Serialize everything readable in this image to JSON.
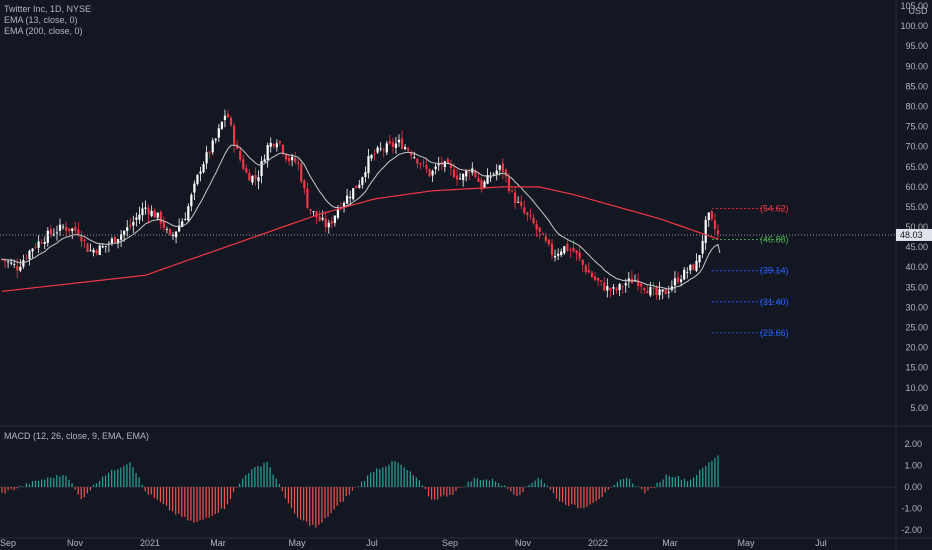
{
  "legend": {
    "symbol": "Twitter Inc, 1D, NYSE",
    "ema13": "EMA (13, close, 0)",
    "ema200": "EMA (200, close, 0)",
    "macd": "MACD (12, 26, close, 9, EMA, EMA)"
  },
  "currency": "USD",
  "colors": {
    "up": "#ffffff",
    "down": "#f23645",
    "ema13": "#c8c8c8",
    "ema200": "#f23645",
    "hist_up": "#26a69a",
    "hist_down": "#ef5350",
    "bg": "#131722",
    "grid": "#2a2e39"
  },
  "chart_data": [
    {
      "type": "candlestick",
      "title": "Twitter Inc, 1D, NYSE",
      "ylim": [
        0,
        105
      ],
      "y_ticks": [
        "105.00",
        "100.00",
        "95.00",
        "90.00",
        "85.00",
        "80.00",
        "75.00",
        "70.00",
        "65.00",
        "60.00",
        "55.00",
        "50.00",
        "45.00",
        "40.00",
        "35.00",
        "30.00",
        "25.00",
        "20.00",
        "15.00",
        "10.00",
        "5.00"
      ],
      "x_ticks": [
        "Sep",
        "Nov",
        "2021",
        "Mar",
        "May",
        "Jul",
        "Sep",
        "Nov",
        "2022",
        "Mar",
        "May",
        "Jul"
      ],
      "last_price": "48.03",
      "price_keypoints": [
        {
          "t": 0,
          "v": 42
        },
        {
          "t": 0.03,
          "v": 40
        },
        {
          "t": 0.06,
          "v": 45
        },
        {
          "t": 0.09,
          "v": 48
        },
        {
          "t": 0.12,
          "v": 50
        },
        {
          "t": 0.15,
          "v": 49
        },
        {
          "t": 0.17,
          "v": 44
        },
        {
          "t": 0.2,
          "v": 45
        },
        {
          "t": 0.22,
          "v": 47
        },
        {
          "t": 0.25,
          "v": 50
        },
        {
          "t": 0.28,
          "v": 55
        },
        {
          "t": 0.31,
          "v": 52
        },
        {
          "t": 0.33,
          "v": 47
        },
        {
          "t": 0.36,
          "v": 53
        },
        {
          "t": 0.39,
          "v": 65
        },
        {
          "t": 0.42,
          "v": 72
        },
        {
          "t": 0.44,
          "v": 79
        },
        {
          "t": 0.46,
          "v": 69
        },
        {
          "t": 0.48,
          "v": 63
        },
        {
          "t": 0.5,
          "v": 62
        },
        {
          "t": 0.52,
          "v": 70
        },
        {
          "t": 0.54,
          "v": 72
        },
        {
          "t": 0.56,
          "v": 67
        },
        {
          "t": 0.58,
          "v": 66
        },
        {
          "t": 0.6,
          "v": 55
        },
        {
          "t": 0.62,
          "v": 52
        },
        {
          "t": 0.64,
          "v": 50
        },
        {
          "t": 0.66,
          "v": 55
        },
        {
          "t": 0.68,
          "v": 58
        },
        {
          "t": 0.7,
          "v": 61
        },
        {
          "t": 0.72,
          "v": 67
        },
        {
          "t": 0.74,
          "v": 69
        },
        {
          "t": 0.76,
          "v": 70
        },
        {
          "t": 0.78,
          "v": 71
        },
        {
          "t": 0.8,
          "v": 69
        },
        {
          "t": 0.82,
          "v": 66
        },
        {
          "t": 0.84,
          "v": 63
        },
        {
          "t": 0.86,
          "v": 66
        },
        {
          "t": 0.88,
          "v": 64
        },
        {
          "t": 0.9,
          "v": 62
        },
        {
          "t": 0.92,
          "v": 65
        },
        {
          "t": 0.94,
          "v": 60
        },
        {
          "t": 0.96,
          "v": 63
        },
        {
          "t": 0.98,
          "v": 65
        },
        {
          "t": 1.0,
          "v": 58
        }
      ],
      "price_keypoints_2": [
        {
          "t": 0,
          "v": 58
        },
        {
          "t": 0.05,
          "v": 54
        },
        {
          "t": 0.1,
          "v": 51
        },
        {
          "t": 0.15,
          "v": 47
        },
        {
          "t": 0.2,
          "v": 43
        },
        {
          "t": 0.25,
          "v": 45
        },
        {
          "t": 0.3,
          "v": 44
        },
        {
          "t": 0.35,
          "v": 40
        },
        {
          "t": 0.4,
          "v": 37
        },
        {
          "t": 0.45,
          "v": 35
        },
        {
          "t": 0.5,
          "v": 34
        },
        {
          "t": 0.55,
          "v": 36
        },
        {
          "t": 0.6,
          "v": 37
        },
        {
          "t": 0.65,
          "v": 35
        },
        {
          "t": 0.7,
          "v": 33
        },
        {
          "t": 0.75,
          "v": 34
        },
        {
          "t": 0.8,
          "v": 37
        },
        {
          "t": 0.85,
          "v": 39
        },
        {
          "t": 0.9,
          "v": 41
        },
        {
          "t": 0.95,
          "v": 53
        },
        {
          "t": 1.0,
          "v": 48
        }
      ],
      "ema200_keypoints": [
        {
          "t": 0,
          "v": 34
        },
        {
          "t": 0.1,
          "v": 36
        },
        {
          "t": 0.2,
          "v": 38
        },
        {
          "t": 0.28,
          "v": 43
        },
        {
          "t": 0.36,
          "v": 48
        },
        {
          "t": 0.44,
          "v": 53
        },
        {
          "t": 0.52,
          "v": 57
        },
        {
          "t": 0.6,
          "v": 59
        },
        {
          "t": 0.7,
          "v": 60
        },
        {
          "t": 0.75,
          "v": 60
        },
        {
          "t": 0.8,
          "v": 58
        },
        {
          "t": 0.86,
          "v": 55
        },
        {
          "t": 0.92,
          "v": 52
        },
        {
          "t": 1.0,
          "v": 47
        }
      ],
      "fib_levels": [
        {
          "label": "(54.62)",
          "value": 54.62,
          "color": "#f23645"
        },
        {
          "label": "(46.88)",
          "value": 46.88,
          "color": "#4caf50"
        },
        {
          "label": "(39.14)",
          "value": 39.14,
          "color": "#2962ff"
        },
        {
          "label": "(31.40)",
          "value": 31.4,
          "color": "#2962ff"
        },
        {
          "label": "(23.66)",
          "value": 23.66,
          "color": "#2962ff"
        }
      ]
    },
    {
      "type": "bar",
      "title": "MACD (12, 26, close, 9, EMA, EMA)",
      "ylim": [
        -2.2,
        2.5
      ],
      "y_ticks": [
        "2.00",
        "1.00",
        "0.00",
        "-1.00",
        "-2.00"
      ],
      "hist_keypoints": [
        {
          "t": 0,
          "v": -0.3
        },
        {
          "t": 0.05,
          "v": 0.3
        },
        {
          "t": 0.09,
          "v": 0.6
        },
        {
          "t": 0.11,
          "v": -0.6
        },
        {
          "t": 0.14,
          "v": 0.5
        },
        {
          "t": 0.18,
          "v": 1.2
        },
        {
          "t": 0.2,
          "v": -0.2
        },
        {
          "t": 0.24,
          "v": -1.2
        },
        {
          "t": 0.27,
          "v": -1.7
        },
        {
          "t": 0.31,
          "v": -1.0
        },
        {
          "t": 0.34,
          "v": 0.6
        },
        {
          "t": 0.37,
          "v": 1.2
        },
        {
          "t": 0.41,
          "v": -1.4
        },
        {
          "t": 0.44,
          "v": -1.9
        },
        {
          "t": 0.48,
          "v": -0.5
        },
        {
          "t": 0.52,
          "v": 0.8
        },
        {
          "t": 0.55,
          "v": 1.2
        },
        {
          "t": 0.58,
          "v": 0.4
        },
        {
          "t": 0.6,
          "v": -0.6
        },
        {
          "t": 0.63,
          "v": -0.3
        },
        {
          "t": 0.66,
          "v": 0.4
        },
        {
          "t": 0.69,
          "v": 0.3
        },
        {
          "t": 0.72,
          "v": -0.4
        },
        {
          "t": 0.75,
          "v": 0.5
        },
        {
          "t": 0.78,
          "v": -0.7
        },
        {
          "t": 0.81,
          "v": -1.0
        },
        {
          "t": 0.84,
          "v": -0.4
        },
        {
          "t": 0.87,
          "v": 0.5
        },
        {
          "t": 0.9,
          "v": -0.3
        },
        {
          "t": 0.93,
          "v": 0.6
        },
        {
          "t": 0.96,
          "v": 0.3
        },
        {
          "t": 1.0,
          "v": 1.5
        }
      ]
    }
  ]
}
